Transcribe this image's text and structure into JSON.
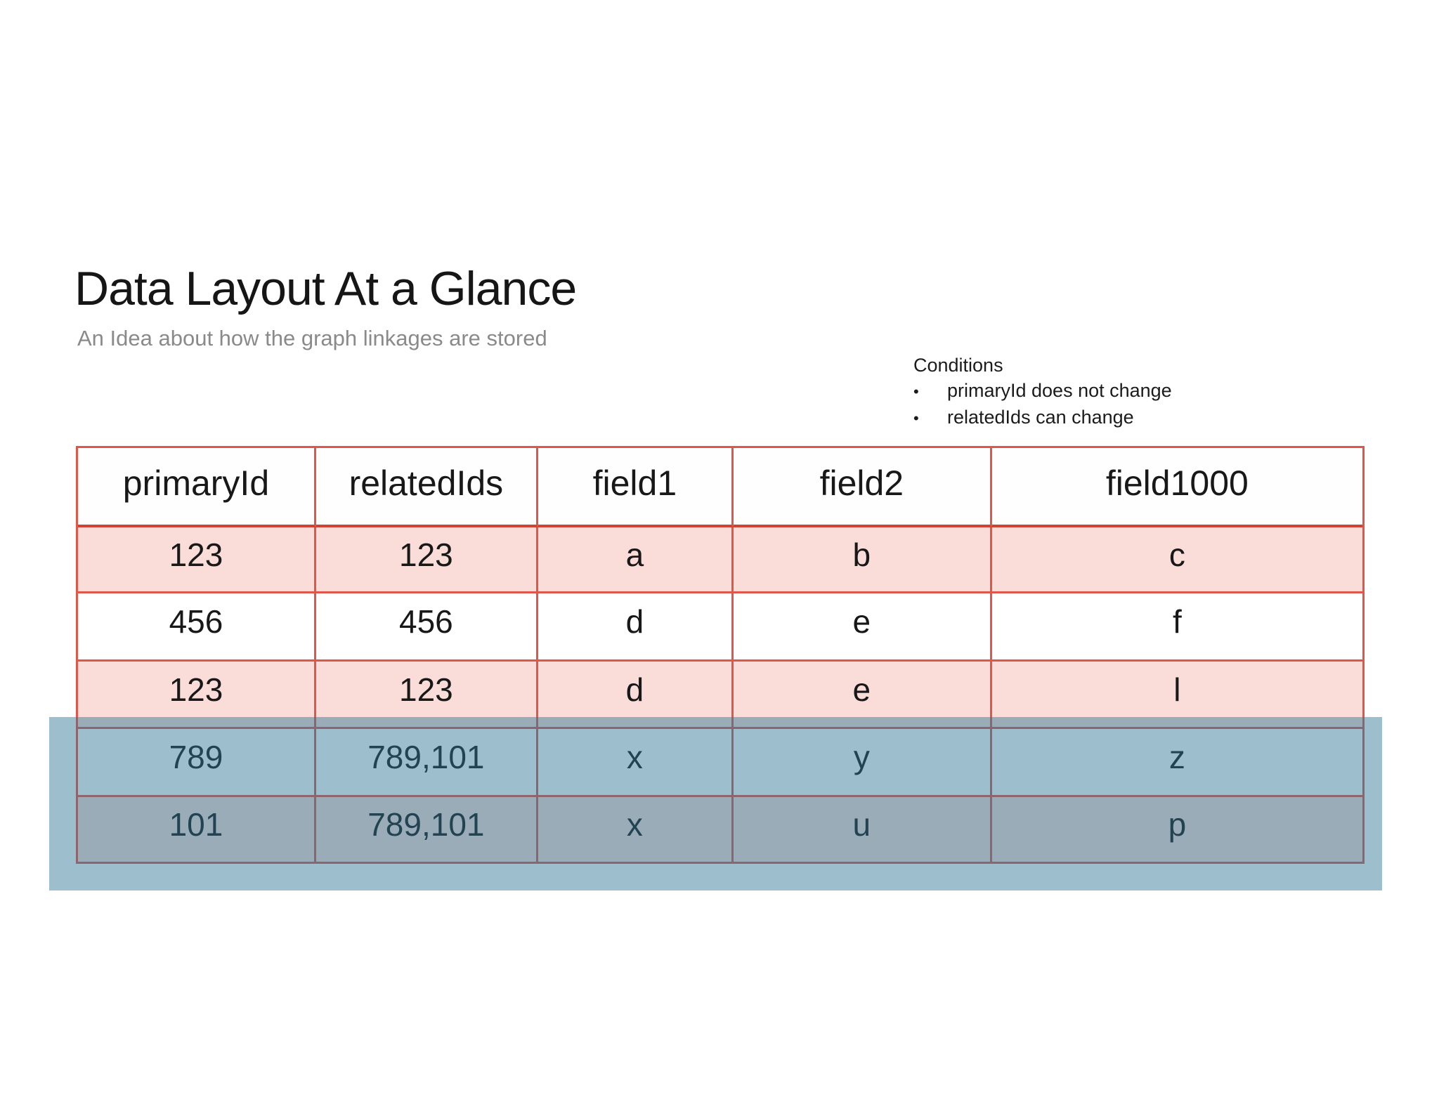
{
  "slide": {
    "title": "Data Layout At a Glance",
    "subtitle": "An Idea about how the graph linkages are stored"
  },
  "conditions": {
    "heading": "Conditions",
    "bullet": "•",
    "items": [
      "primaryId does not change",
      "relatedIds can change"
    ]
  },
  "table": {
    "columns": [
      "primaryId",
      "relatedIds",
      "field1",
      "field2",
      "field1000"
    ],
    "rows": [
      {
        "cells": [
          "123",
          "123",
          "a",
          "b",
          "c"
        ],
        "bg": "#fadcd8"
      },
      {
        "cells": [
          "456",
          "456",
          "d",
          "e",
          "f"
        ],
        "bg": "#ffffff"
      },
      {
        "cells": [
          "123",
          "123",
          "d",
          "e",
          "l"
        ],
        "bg": "#fadcd8"
      },
      {
        "cells": [
          "789",
          "789,101",
          "x",
          "y",
          "z"
        ],
        "bg": "#ffffff"
      },
      {
        "cells": [
          "101",
          "789,101",
          "x",
          "u",
          "p"
        ],
        "bg": "#fadcd8"
      }
    ]
  },
  "overlay": {
    "description": "translucent blue highlight over last two rows",
    "color": "rgba(47,118,148,0.47)"
  },
  "colors": {
    "border_red": "#e0574a",
    "header_underline": "#cf4334",
    "band_pink": "#fadcd8",
    "band_white": "#ffffff",
    "title_black": "#161616",
    "subtitle_gray": "#8a8a8a"
  }
}
